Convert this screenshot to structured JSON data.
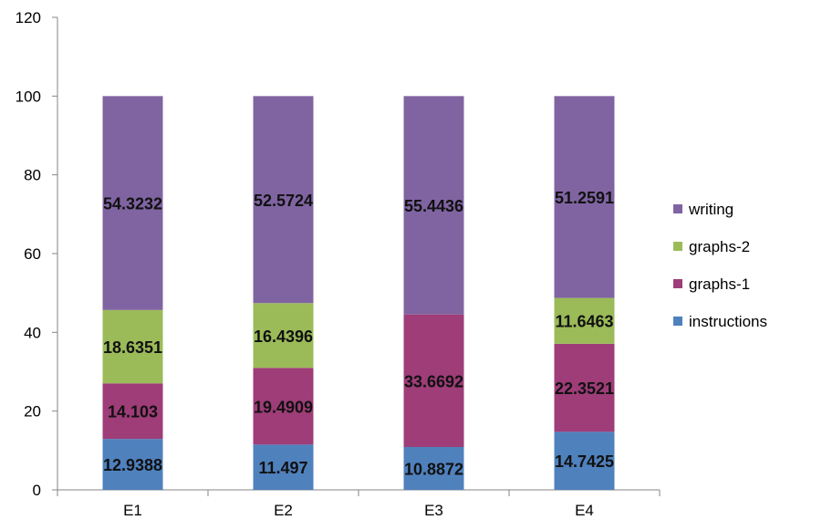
{
  "chart_data": {
    "type": "bar",
    "stacked": true,
    "categories": [
      "E1",
      "E2",
      "E3",
      "E4"
    ],
    "series": [
      {
        "name": "instructions",
        "color": "#4F81BD",
        "values": [
          12.9388,
          11.497,
          10.8872,
          14.7425
        ]
      },
      {
        "name": "graphs-1",
        "color": "#9E3D78",
        "values": [
          14.103,
          19.4909,
          33.6692,
          22.3521
        ]
      },
      {
        "name": "graphs-2",
        "color": "#9BBB59",
        "values": [
          18.6351,
          16.4396,
          null,
          11.6463
        ]
      },
      {
        "name": "writing",
        "color": "#8064A2",
        "values": [
          54.3232,
          52.5724,
          55.4436,
          51.2591
        ]
      }
    ],
    "ylim": [
      0,
      120
    ],
    "yticks": [
      0,
      20,
      40,
      60,
      80,
      100,
      120
    ],
    "grid": false,
    "legend_position": "right",
    "legend_order": [
      "writing",
      "graphs-2",
      "graphs-1",
      "instructions"
    ]
  }
}
